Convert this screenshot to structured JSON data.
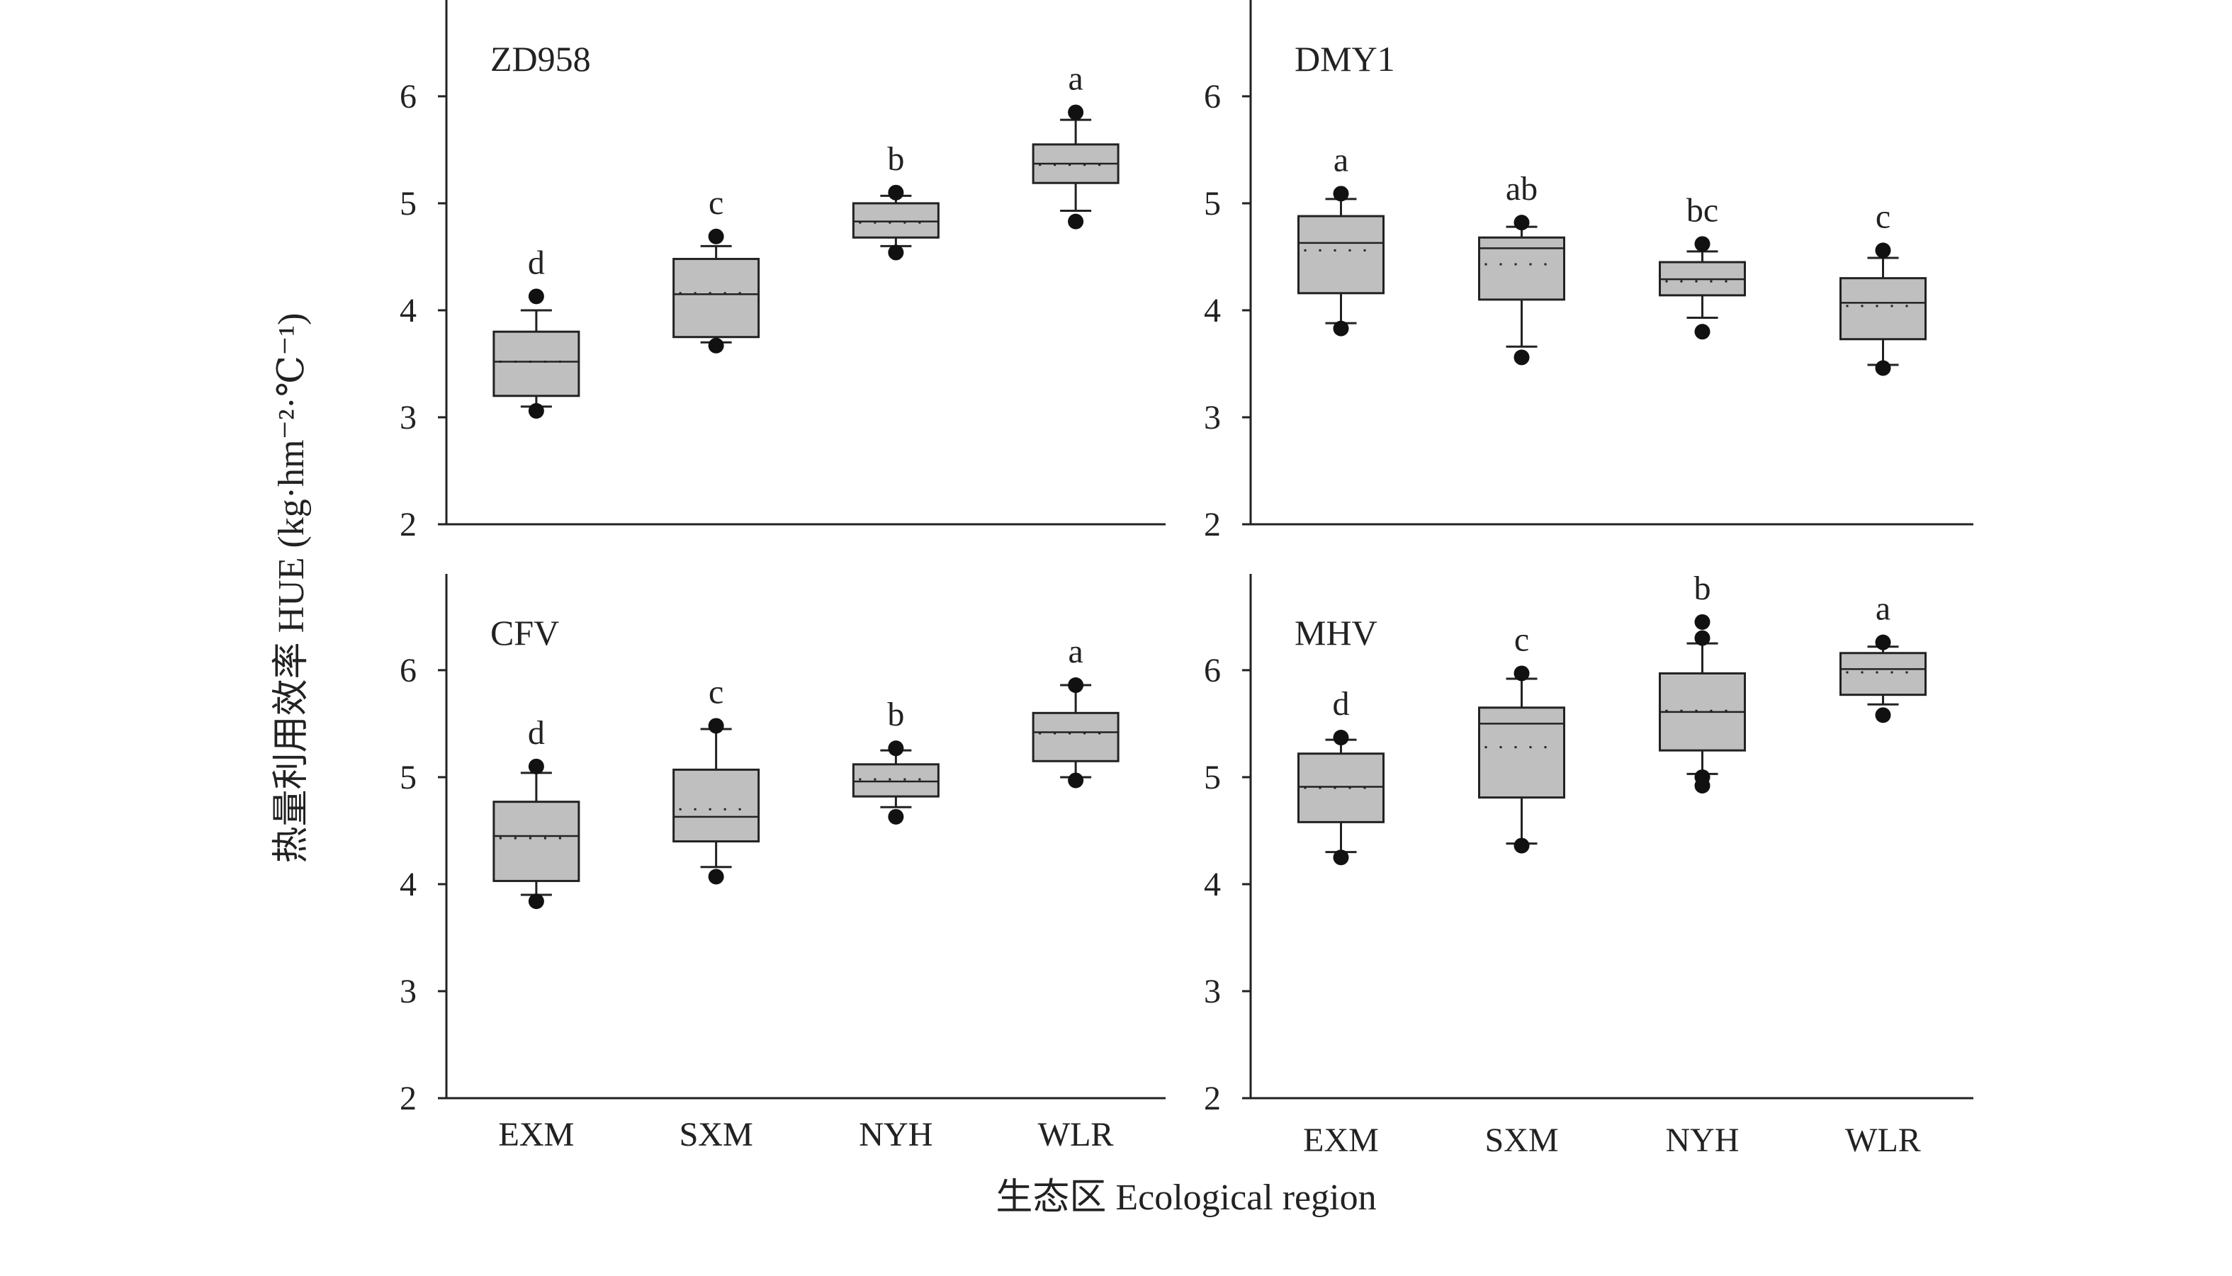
{
  "chart_data": {
    "type": "box",
    "xlabel": "生态区 Ecological region",
    "ylabel": "热量利用效率 HUE (kg·hm⁻²·℃⁻¹)",
    "ylim": [
      2,
      6.9
    ],
    "yticks": [
      2,
      3,
      4,
      5,
      6
    ],
    "categories": [
      "EXM",
      "SXM",
      "NYH",
      "WLR"
    ],
    "colors": {
      "box_fill": "#bfbfbf",
      "stroke": "#222222"
    },
    "panels": [
      {
        "title": "ZD958",
        "boxes": [
          {
            "category": "EXM",
            "whisker_low": 3.1,
            "q1": 3.2,
            "median": 3.52,
            "mean": 3.52,
            "q3": 3.8,
            "whisker_high": 4.0,
            "outliers": [
              3.06,
              4.13
            ],
            "letter": "d"
          },
          {
            "category": "SXM",
            "whisker_low": 3.7,
            "q1": 3.75,
            "median": 4.15,
            "mean": 4.16,
            "q3": 4.48,
            "whisker_high": 4.6,
            "outliers": [
              3.67,
              4.69
            ],
            "letter": "c"
          },
          {
            "category": "NYH",
            "whisker_low": 4.6,
            "q1": 4.68,
            "median": 4.83,
            "mean": 4.82,
            "q3": 5.0,
            "whisker_high": 5.07,
            "outliers": [
              4.54,
              5.1
            ],
            "letter": "b"
          },
          {
            "category": "WLR",
            "whisker_low": 4.93,
            "q1": 5.19,
            "median": 5.37,
            "mean": 5.36,
            "q3": 5.55,
            "whisker_high": 5.78,
            "outliers": [
              4.83,
              5.85
            ],
            "letter": "a"
          }
        ]
      },
      {
        "title": "DMY1",
        "boxes": [
          {
            "category": "EXM",
            "whisker_low": 3.88,
            "q1": 4.16,
            "median": 4.63,
            "mean": 4.56,
            "q3": 4.88,
            "whisker_high": 5.04,
            "outliers": [
              3.83,
              5.09
            ],
            "letter": "a"
          },
          {
            "category": "SXM",
            "whisker_low": 3.66,
            "q1": 4.1,
            "median": 4.58,
            "mean": 4.43,
            "q3": 4.68,
            "whisker_high": 4.78,
            "outliers": [
              3.56,
              4.82
            ],
            "letter": "ab"
          },
          {
            "category": "NYH",
            "whisker_low": 3.93,
            "q1": 4.14,
            "median": 4.29,
            "mean": 4.27,
            "q3": 4.45,
            "whisker_high": 4.55,
            "outliers": [
              3.8,
              4.62
            ],
            "letter": "bc"
          },
          {
            "category": "WLR",
            "whisker_low": 3.49,
            "q1": 3.73,
            "median": 4.07,
            "mean": 4.04,
            "q3": 4.3,
            "whisker_high": 4.49,
            "outliers": [
              3.46,
              4.56
            ],
            "letter": "c"
          }
        ]
      },
      {
        "title": "CFV",
        "boxes": [
          {
            "category": "EXM",
            "whisker_low": 3.9,
            "q1": 4.03,
            "median": 4.45,
            "mean": 4.43,
            "q3": 4.77,
            "whisker_high": 5.04,
            "outliers": [
              3.84,
              5.1
            ],
            "letter": "d"
          },
          {
            "category": "SXM",
            "whisker_low": 4.16,
            "q1": 4.4,
            "median": 4.63,
            "mean": 4.7,
            "q3": 5.07,
            "whisker_high": 5.45,
            "outliers": [
              4.07,
              5.48
            ],
            "letter": "c"
          },
          {
            "category": "NYH",
            "whisker_low": 4.72,
            "q1": 4.82,
            "median": 4.96,
            "mean": 4.98,
            "q3": 5.12,
            "whisker_high": 5.25,
            "outliers": [
              4.63,
              5.27
            ],
            "letter": "b"
          },
          {
            "category": "WLR",
            "whisker_low": 5.0,
            "q1": 5.15,
            "median": 5.42,
            "mean": 5.41,
            "q3": 5.6,
            "whisker_high": 5.86,
            "outliers": [
              4.97,
              5.86
            ],
            "letter": "a"
          }
        ]
      },
      {
        "title": "MHV",
        "boxes": [
          {
            "category": "EXM",
            "whisker_low": 4.3,
            "q1": 4.58,
            "median": 4.91,
            "mean": 4.9,
            "q3": 5.22,
            "whisker_high": 5.35,
            "outliers": [
              4.25,
              5.37
            ],
            "letter": "d"
          },
          {
            "category": "SXM",
            "whisker_low": 4.38,
            "q1": 4.81,
            "median": 5.5,
            "mean": 5.28,
            "q3": 5.65,
            "whisker_high": 5.92,
            "outliers": [
              4.36,
              5.97
            ],
            "letter": "c"
          },
          {
            "category": "NYH",
            "whisker_low": 5.03,
            "q1": 5.25,
            "median": 5.61,
            "mean": 5.62,
            "q3": 5.97,
            "whisker_high": 6.25,
            "outliers": [
              4.92,
              5.0,
              6.3,
              6.45
            ],
            "letter": "b"
          },
          {
            "category": "WLR",
            "whisker_low": 5.68,
            "q1": 5.77,
            "median": 6.01,
            "mean": 5.98,
            "q3": 6.16,
            "whisker_high": 6.22,
            "outliers": [
              5.58,
              6.26
            ],
            "letter": "a"
          }
        ]
      }
    ]
  }
}
